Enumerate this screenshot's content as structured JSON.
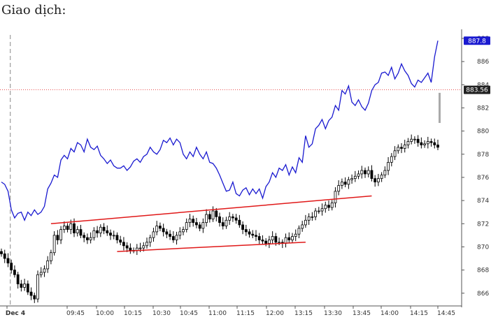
{
  "heading": "Giao dịch:",
  "colors": {
    "blue_series": "#1a1ad0",
    "candle": "#000000",
    "trend": "#e01818",
    "ref_line": "#e01818",
    "tag_blue": "#1a1ad0",
    "tag_dark": "#222222"
  },
  "chart_data": {
    "type": "line",
    "ylim": [
      864.9,
      888.3
    ],
    "y_ticks": [
      866,
      868,
      870,
      872,
      874,
      876,
      878,
      880,
      882,
      884,
      886,
      888
    ],
    "x_labels": [
      "Dec 4",
      "09:45",
      "10:00",
      "10:15",
      "10:30",
      "10:45",
      "11:00",
      "11:15",
      "12:00",
      "13:15",
      "13:30",
      "13:45",
      "14:00",
      "14:15",
      "14:45"
    ],
    "series": [
      {
        "style": "line",
        "color": "#1a1ad0",
        "values": [
          875.6,
          875.4,
          874.8,
          873.2,
          872.5,
          872.9,
          873.0,
          872.3,
          873.0,
          872.7,
          873.2,
          872.8,
          873.0,
          873.5,
          875.0,
          875.5,
          876.2,
          876.0,
          877.5,
          877.9,
          877.6,
          878.5,
          878.2,
          879.0,
          878.8,
          878.2,
          879.3,
          878.6,
          878.4,
          878.7,
          877.9,
          877.6,
          877.2,
          877.5,
          877.0,
          876.8,
          876.8,
          877.0,
          876.6,
          876.9,
          877.4,
          877.6,
          877.3,
          877.8,
          878.0,
          878.6,
          878.2,
          878.0,
          878.4,
          879.2,
          879.0,
          879.4,
          878.8,
          879.3,
          879.0,
          878.0,
          877.6,
          878.2,
          877.8,
          878.6,
          878.0,
          877.6,
          878.2,
          877.3,
          877.2,
          876.8,
          876.2,
          875.5,
          874.8,
          874.9,
          875.6,
          874.6,
          874.4,
          874.9,
          875.1,
          874.5,
          875.0,
          874.6,
          875.0,
          874.2,
          875.2,
          875.6,
          876.4,
          876.0,
          876.8,
          876.6,
          877.1,
          876.2,
          876.9,
          876.4,
          877.7,
          877.3,
          879.6,
          878.6,
          878.9,
          880.2,
          880.5,
          881.0,
          880.2,
          880.9,
          881.2,
          882.2,
          881.8,
          883.5,
          883.2,
          883.9,
          882.5,
          882.2,
          882.7,
          882.1,
          881.8,
          882.4,
          883.5,
          884.0,
          884.2,
          885.0,
          885.1,
          884.8,
          885.5,
          884.5,
          885.0,
          885.8,
          885.2,
          884.8,
          884.1,
          883.8,
          884.4,
          884.2,
          884.6,
          885.0,
          884.2,
          886.4,
          887.8
        ]
      },
      {
        "style": "candlestick",
        "color": "#000000",
        "values": [
          869.4,
          869.0,
          868.6,
          868.0,
          867.6,
          866.8,
          866.5,
          866.8,
          866.1,
          865.8,
          865.5,
          867.6,
          867.8,
          868.1,
          868.8,
          869.5,
          871.0,
          870.6,
          871.5,
          871.8,
          871.5,
          872.0,
          871.2,
          871.5,
          871.0,
          870.8,
          870.6,
          870.8,
          871.4,
          871.2,
          871.7,
          871.4,
          871.2,
          871.0,
          871.0,
          870.6,
          870.4,
          870.1,
          869.9,
          869.7,
          869.7,
          869.9,
          869.9,
          870.1,
          870.4,
          870.8,
          871.3,
          871.8,
          871.6,
          871.3,
          871.1,
          870.9,
          870.6,
          871.0,
          871.3,
          871.5,
          872.1,
          872.4,
          872.1,
          871.9,
          871.6,
          872.1,
          872.8,
          872.4,
          873.1,
          872.6,
          872.1,
          871.8,
          872.3,
          872.6,
          872.5,
          872.3,
          871.9,
          871.5,
          871.3,
          871.1,
          871.0,
          870.9,
          870.6,
          870.5,
          870.3,
          870.6,
          870.9,
          870.4,
          870.4,
          870.3,
          870.8,
          870.6,
          870.9,
          871.1,
          871.6,
          871.9,
          872.3,
          872.6,
          872.6,
          873.1,
          873.1,
          873.3,
          873.6,
          873.4,
          873.8,
          874.8,
          875.3,
          875.6,
          875.4,
          875.8,
          875.9,
          876.1,
          876.3,
          876.6,
          876.3,
          876.6,
          875.9,
          875.6,
          875.9,
          876.2,
          876.6,
          877.3,
          877.8,
          878.3,
          878.6,
          878.5,
          878.8,
          879.1,
          879.3,
          879.3,
          879.0,
          878.8,
          878.9,
          879.1,
          879.0,
          878.8,
          878.6
        ]
      }
    ],
    "trendlines": [
      {
        "color": "#e01818",
        "points": [
          [
            15,
            872.0
          ],
          [
            112,
            874.4
          ]
        ]
      },
      {
        "color": "#e01818",
        "points": [
          [
            35,
            869.6
          ],
          [
            92,
            870.4
          ]
        ]
      }
    ],
    "reference_line": {
      "value": 883.56,
      "color": "#e01818",
      "style": "dotted"
    },
    "price_tags": [
      {
        "label": "887.8",
        "value": 887.8,
        "bg": "#1a1ad0"
      },
      {
        "label": "883.56",
        "value": 883.56,
        "bg": "#222222"
      }
    ],
    "session_marker": {
      "x_index": 1,
      "style": "dashed"
    },
    "grid": false,
    "legend": "none"
  }
}
